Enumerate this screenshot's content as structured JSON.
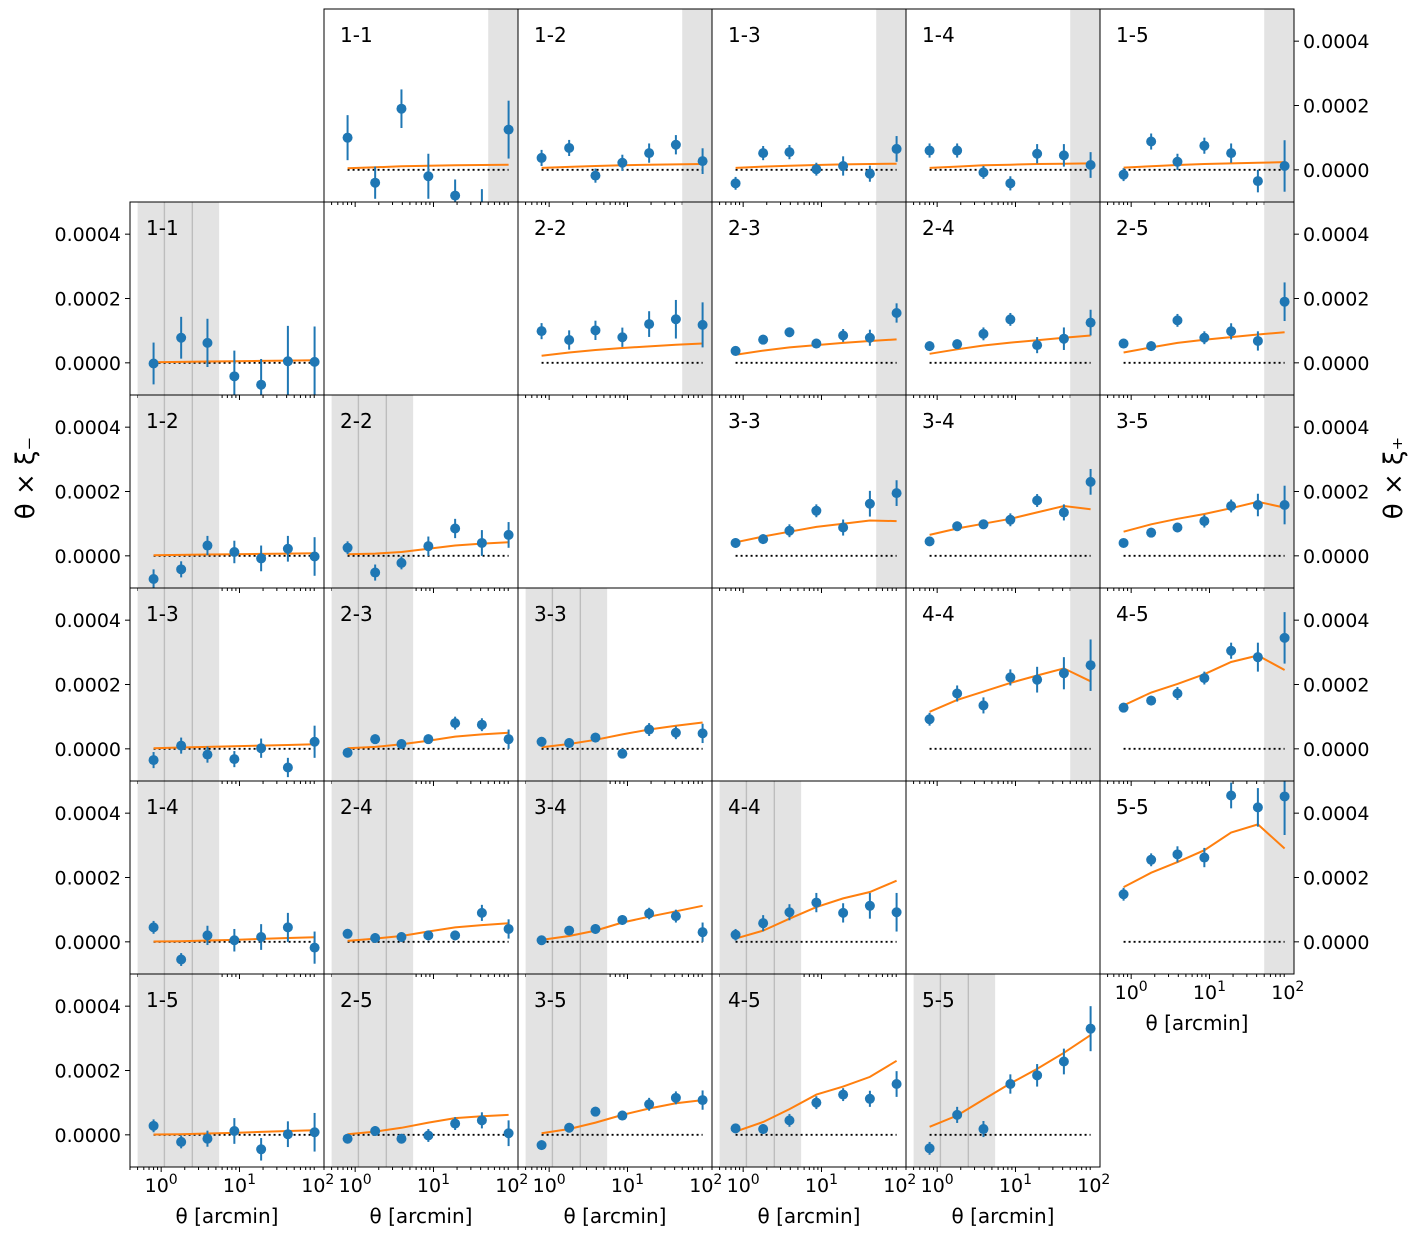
{
  "chart_data": {
    "type": "scatter",
    "description_layout": "grid",
    "x_scale": "log",
    "xlim": [
      0.4,
      120
    ],
    "ylim": [
      -0.0001,
      0.0005
    ],
    "y_ticks": [
      0,
      0.0002,
      0.0004
    ],
    "y_tick_labels": [
      "0.0000",
      "0.0002",
      "0.0004"
    ],
    "x_ticks": [
      1,
      10,
      100
    ],
    "x_tick_labels": {
      "base": "10",
      "exponents": [
        "0",
        "1",
        "2"
      ]
    },
    "x_axis_label": "θ [arcmin]",
    "left_axis_label": "θ × ξ₋",
    "right_axis_label": "θ × ξ₊",
    "theta_bins": [
      0.8,
      1.8,
      3.9,
      8.6,
      18.9,
      41.5,
      91.0
    ],
    "colors": {
      "data": "#1f77b4",
      "model": "#ff7f0e",
      "zero": "#000000",
      "mask": "#e3e3e3"
    },
    "upper_shading": [
      50,
      120
    ],
    "lower_shading": [
      0.5,
      5.5
    ],
    "lower_vlines": [
      1.1,
      2.5
    ],
    "xi_plus": [
      {
        "label": "1-1",
        "row": 0,
        "col": 1,
        "y": [
          0.0001,
          -4e-05,
          0.00019,
          -2e-05,
          -8e-05,
          -0.00012,
          0.000125
        ],
        "err": [
          7e-05,
          5e-05,
          6e-05,
          7e-05,
          5e-05,
          6e-05,
          9e-05
        ],
        "model": [
          5e-06,
          8e-06,
          1.1e-05,
          1.3e-05,
          1.4e-05,
          1.5e-05,
          1.6e-05
        ]
      },
      {
        "label": "1-2",
        "row": 0,
        "col": 2,
        "y": [
          3.7e-05,
          6.8e-05,
          -1.8e-05,
          2.2e-05,
          5.2e-05,
          7.8e-05,
          2.7e-05
        ],
        "err": [
          2.5e-05,
          2.5e-05,
          2.2e-05,
          2.5e-05,
          3e-05,
          3e-05,
          4e-05
        ],
        "model": [
          6e-06,
          9e-06,
          1.2e-05,
          1.4e-05,
          1.6e-05,
          1.7e-05,
          1.8e-05
        ]
      },
      {
        "label": "1-3",
        "row": 0,
        "col": 3,
        "y": [
          -4.2e-05,
          5.2e-05,
          5.5e-05,
          2e-06,
          1.2e-05,
          -1.2e-05,
          6.5e-05
        ],
        "err": [
          2e-05,
          2.2e-05,
          2.2e-05,
          2e-05,
          3e-05,
          2.5e-05,
          4e-05
        ],
        "model": [
          6e-06,
          1e-05,
          1.3e-05,
          1.5e-05,
          1.7e-05,
          1.8e-05,
          1.9e-05
        ]
      },
      {
        "label": "1-4",
        "row": 0,
        "col": 4,
        "y": [
          6e-05,
          6e-05,
          -8e-06,
          -4.2e-05,
          5e-05,
          4.5e-05,
          1.5e-05
        ],
        "err": [
          2.2e-05,
          2.2e-05,
          2e-05,
          2.2e-05,
          3e-05,
          3.5e-05,
          4e-05
        ],
        "model": [
          6e-06,
          1e-05,
          1.4e-05,
          1.6e-05,
          1.8e-05,
          1.9e-05,
          2e-05
        ]
      },
      {
        "label": "1-5",
        "row": 0,
        "col": 5,
        "y": [
          -1.5e-05,
          8.8e-05,
          2.5e-05,
          7.5e-05,
          5.2e-05,
          -3.5e-05,
          1.2e-05
        ],
        "err": [
          2e-05,
          2.5e-05,
          2.5e-05,
          2.5e-05,
          3e-05,
          3.5e-05,
          8e-05
        ],
        "model": [
          7e-06,
          1.1e-05,
          1.5e-05,
          1.8e-05,
          2e-05,
          2.2e-05,
          2.4e-05
        ]
      },
      {
        "label": "2-2",
        "row": 1,
        "col": 2,
        "y": [
          9.85e-05,
          7.1e-05,
          0.000101,
          7.95e-05,
          0.0001205,
          0.0001355,
          0.000118
        ],
        "err": [
          2.5e-05,
          3e-05,
          3e-05,
          3e-05,
          4e-05,
          6e-05,
          7e-05
        ],
        "model": [
          2.2e-05,
          3.2e-05,
          4e-05,
          4.6e-05,
          5.1e-05,
          5.6e-05,
          6e-05
        ]
      },
      {
        "label": "2-3",
        "row": 1,
        "col": 3,
        "y": [
          3.7e-05,
          7.2e-05,
          9.5e-05,
          6e-05,
          8.5e-05,
          7.8e-05,
          0.000155
        ],
        "err": [
          1.5e-05,
          1.5e-05,
          1.5e-05,
          1.5e-05,
          2e-05,
          2.5e-05,
          3e-05
        ],
        "model": [
          2.5e-05,
          3.8e-05,
          4.8e-05,
          5.5e-05,
          6.2e-05,
          6.8e-05,
          7.3e-05
        ]
      },
      {
        "label": "2-4",
        "row": 1,
        "col": 4,
        "y": [
          5.2e-05,
          5.8e-05,
          9e-05,
          0.000135,
          5.5e-05,
          7.5e-05,
          0.000125
        ],
        "err": [
          1.5e-05,
          1.5e-05,
          2e-05,
          2e-05,
          2.5e-05,
          3.5e-05,
          4e-05
        ],
        "model": [
          2.8e-05,
          4.2e-05,
          5.4e-05,
          6.3e-05,
          7e-05,
          7.8e-05,
          8.5e-05
        ]
      },
      {
        "label": "2-5",
        "row": 1,
        "col": 5,
        "y": [
          6e-05,
          5.2e-05,
          0.000132,
          7.8e-05,
          9.8e-05,
          6.8e-05,
          0.00019
        ],
        "err": [
          1.5e-05,
          1.5e-05,
          2e-05,
          2e-05,
          2.5e-05,
          3e-05,
          6e-05
        ],
        "model": [
          3.2e-05,
          4.8e-05,
          6.2e-05,
          7.2e-05,
          8e-05,
          8.8e-05,
          9.5e-05
        ]
      },
      {
        "label": "3-3",
        "row": 2,
        "col": 3,
        "y": [
          4e-05,
          5.2e-05,
          7.8e-05,
          0.00014,
          8.8e-05,
          0.000162,
          0.000195
        ],
        "err": [
          1.5e-05,
          1.5e-05,
          2e-05,
          2e-05,
          2.5e-05,
          4e-05,
          4e-05
        ],
        "model": [
          4.2e-05,
          6e-05,
          7.5e-05,
          9e-05,
          0.0001,
          0.00011,
          0.000108
        ]
      },
      {
        "label": "3-4",
        "row": 2,
        "col": 4,
        "y": [
          4.5e-05,
          9.2e-05,
          9.8e-05,
          0.000112,
          0.000172,
          0.000135,
          0.00023
        ],
        "err": [
          1.2e-05,
          1.5e-05,
          1.5e-05,
          2e-05,
          2e-05,
          2.5e-05,
          4e-05
        ],
        "model": [
          6.5e-05,
          8.5e-05,
          0.0001,
          0.000115,
          0.000135,
          0.000155,
          0.000145
        ]
      },
      {
        "label": "3-5",
        "row": 2,
        "col": 5,
        "y": [
          4e-05,
          7.2e-05,
          8.8e-05,
          0.000108,
          0.000155,
          0.000158,
          0.000158
        ],
        "err": [
          1.2e-05,
          1.5e-05,
          1.5e-05,
          2e-05,
          2e-05,
          3.5e-05,
          6e-05
        ],
        "model": [
          7.5e-05,
          9.8e-05,
          0.000115,
          0.00013,
          0.000148,
          0.000168,
          0.00015
        ]
      },
      {
        "label": "4-4",
        "row": 3,
        "col": 4,
        "y": [
          9.2e-05,
          0.000172,
          0.000135,
          0.000222,
          0.000215,
          0.000235,
          0.00026
        ],
        "err": [
          2e-05,
          2.5e-05,
          2.5e-05,
          2.5e-05,
          4e-05,
          5e-05,
          8e-05
        ],
        "model": [
          0.000115,
          0.000152,
          0.000178,
          0.000205,
          0.000228,
          0.00025,
          0.00021
        ]
      },
      {
        "label": "4-5",
        "row": 3,
        "col": 5,
        "y": [
          0.000128,
          0.00015,
          0.000172,
          0.00022,
          0.000305,
          0.000285,
          0.000345
        ],
        "err": [
          1.5e-05,
          1.5e-05,
          2e-05,
          2e-05,
          2.5e-05,
          4.5e-05,
          8e-05
        ],
        "model": [
          0.000135,
          0.000175,
          0.000202,
          0.000232,
          0.00027,
          0.00029,
          0.000245
        ]
      },
      {
        "label": "5-5",
        "row": 4,
        "col": 5,
        "y": [
          0.000148,
          0.000255,
          0.000272,
          0.000262,
          0.000455,
          0.000418,
          0.000452
        ],
        "err": [
          2e-05,
          2e-05,
          2.5e-05,
          3e-05,
          4e-05,
          6e-05,
          0.00012
        ],
        "model": [
          0.00017,
          0.000215,
          0.000248,
          0.000285,
          0.00034,
          0.000365,
          0.00029
        ]
      }
    ],
    "xi_minus": [
      {
        "label": "1-1",
        "row": 1,
        "col": 0,
        "y": [
          -2e-06,
          7.8e-05,
          6.2e-05,
          -4.2e-05,
          -6.8e-05,
          5e-06,
          3e-06
        ],
        "err": [
          6.5e-05,
          6.5e-05,
          7.5e-05,
          8e-05,
          8e-05,
          0.00011,
          0.00011
        ],
        "model": [
          2e-06,
          3e-06,
          4e-06,
          5e-06,
          6e-06,
          7e-06,
          8e-06
        ]
      },
      {
        "label": "1-2",
        "row": 2,
        "col": 0,
        "y": [
          -7.2e-05,
          -4.2e-05,
          3.2e-05,
          1.2e-05,
          -8e-06,
          2.2e-05,
          -2e-06
        ],
        "err": [
          3e-05,
          2.5e-05,
          3e-05,
          3.5e-05,
          4e-05,
          4e-05,
          6e-05
        ],
        "model": [
          2e-06,
          3e-06,
          4e-06,
          5e-06,
          6e-06,
          7e-06,
          8e-06
        ]
      },
      {
        "label": "2-2",
        "row": 2,
        "col": 1,
        "y": [
          2.5e-05,
          -5.2e-05,
          -2.2e-05,
          3e-05,
          8.5e-05,
          4e-05,
          6.5e-05
        ],
        "err": [
          2e-05,
          2.5e-05,
          2e-05,
          3e-05,
          3e-05,
          4e-05,
          4e-05
        ],
        "model": [
          5e-06,
          7e-06,
          1.2e-05,
          2.2e-05,
          3.2e-05,
          3.8e-05,
          4.2e-05
        ]
      },
      {
        "label": "1-3",
        "row": 3,
        "col": 0,
        "y": [
          -3.5e-05,
          1e-05,
          -1.8e-05,
          -3.2e-05,
          2e-06,
          -5.8e-05,
          2.2e-05
        ],
        "err": [
          2.5e-05,
          2.5e-05,
          2.5e-05,
          2.5e-05,
          3e-05,
          3e-05,
          5e-05
        ],
        "model": [
          2e-06,
          4e-06,
          6e-06,
          8e-06,
          1e-05,
          1.2e-05,
          1.4e-05
        ]
      },
      {
        "label": "2-3",
        "row": 3,
        "col": 1,
        "y": [
          -1.2e-05,
          3e-05,
          1.5e-05,
          3e-05,
          8e-05,
          7.5e-05,
          3e-05
        ],
        "err": [
          1.5e-05,
          1.5e-05,
          1.5e-05,
          1.5e-05,
          2e-05,
          2e-05,
          3e-05
        ],
        "model": [
          2e-06,
          6e-06,
          1.4e-05,
          2.5e-05,
          3.8e-05,
          4.5e-05,
          5e-05
        ]
      },
      {
        "label": "3-3",
        "row": 3,
        "col": 2,
        "y": [
          2.2e-05,
          1.8e-05,
          3.5e-05,
          -1.5e-05,
          6e-05,
          5e-05,
          4.8e-05
        ],
        "err": [
          1.5e-05,
          1.5e-05,
          1.5e-05,
          1.5e-05,
          2e-05,
          2e-05,
          3e-05
        ],
        "model": [
          5e-06,
          1.5e-05,
          2.8e-05,
          4.5e-05,
          6e-05,
          7.2e-05,
          8.2e-05
        ]
      },
      {
        "label": "1-4",
        "row": 4,
        "col": 0,
        "y": [
          4.5e-05,
          -5.5e-05,
          2e-05,
          5e-06,
          1.5e-05,
          4.5e-05,
          -1.8e-05
        ],
        "err": [
          2e-05,
          2e-05,
          3e-05,
          3.5e-05,
          4e-05,
          4.5e-05,
          5e-05
        ],
        "model": [
          1e-06,
          2e-06,
          4e-06,
          6e-06,
          9e-06,
          1.2e-05,
          1.4e-05
        ]
      },
      {
        "label": "2-4",
        "row": 4,
        "col": 1,
        "y": [
          2.5e-05,
          1.2e-05,
          1.5e-05,
          2e-05,
          2e-05,
          9e-05,
          4e-05
        ],
        "err": [
          1.5e-05,
          1.5e-05,
          1.5e-05,
          1.5e-05,
          1.5e-05,
          2.5e-05,
          3e-05
        ],
        "model": [
          3e-06,
          1e-05,
          1.8e-05,
          3.2e-05,
          4.5e-05,
          5.2e-05,
          5.8e-05
        ]
      },
      {
        "label": "3-4",
        "row": 4,
        "col": 2,
        "y": [
          5e-06,
          3.5e-05,
          4e-05,
          6.8e-05,
          8.8e-05,
          8e-05,
          3e-05
        ],
        "err": [
          1e-05,
          1.2e-05,
          1.5e-05,
          1.5e-05,
          1.8e-05,
          2e-05,
          3e-05
        ],
        "model": [
          6e-06,
          1.8e-05,
          3.5e-05,
          6e-05,
          7.8e-05,
          9.5e-05,
          0.000112
        ]
      },
      {
        "label": "4-4",
        "row": 4,
        "col": 3,
        "y": [
          2.2e-05,
          5.8e-05,
          9.2e-05,
          0.000122,
          9e-05,
          0.000112,
          9.2e-05
        ],
        "err": [
          1.8e-05,
          2.5e-05,
          2.5e-05,
          3e-05,
          3e-05,
          4e-05,
          6e-05
        ],
        "model": [
          1e-05,
          3.5e-05,
          7.2e-05,
          0.000108,
          0.000135,
          0.000155,
          0.00019
        ]
      },
      {
        "label": "1-5",
        "row": 5,
        "col": 0,
        "y": [
          2.8e-05,
          -2.2e-05,
          -1.2e-05,
          1.2e-05,
          -4.5e-05,
          2e-06,
          8e-06
        ],
        "err": [
          2e-05,
          2e-05,
          2.5e-05,
          4e-05,
          3.5e-05,
          4e-05,
          6e-05
        ],
        "model": [
          1e-06,
          2e-06,
          4e-06,
          6e-06,
          9e-06,
          1.2e-05,
          1.4e-05
        ]
      },
      {
        "label": "2-5",
        "row": 5,
        "col": 1,
        "y": [
          -1.2e-05,
          1.2e-05,
          -1.2e-05,
          -2e-06,
          3.5e-05,
          4.5e-05,
          5e-06
        ],
        "err": [
          1.5e-05,
          1.5e-05,
          1.5e-05,
          2e-05,
          2e-05,
          2.5e-05,
          4e-05
        ],
        "model": [
          2e-06,
          1e-05,
          2.2e-05,
          3.8e-05,
          5.2e-05,
          5.8e-05,
          6.2e-05
        ]
      },
      {
        "label": "3-5",
        "row": 5,
        "col": 2,
        "y": [
          -3.2e-05,
          2.2e-05,
          7.2e-05,
          6e-05,
          9.5e-05,
          0.000115,
          0.000108
        ],
        "err": [
          1.5e-05,
          1.5e-05,
          1.5e-05,
          1.5e-05,
          2e-05,
          2e-05,
          3e-05
        ],
        "model": [
          5e-06,
          1.8e-05,
          3.8e-05,
          6.2e-05,
          8.2e-05,
          9.8e-05,
          0.000108
        ]
      },
      {
        "label": "4-5",
        "row": 5,
        "col": 3,
        "y": [
          2e-05,
          1.8e-05,
          4.5e-05,
          0.0001,
          0.000125,
          0.000112,
          0.000158
        ],
        "err": [
          1.5e-05,
          1.5e-05,
          2e-05,
          2e-05,
          2e-05,
          2.5e-05,
          4e-05
        ],
        "model": [
          1e-05,
          4e-05,
          8e-05,
          0.000125,
          0.00015,
          0.00018,
          0.00023
        ]
      },
      {
        "label": "5-5",
        "row": 5,
        "col": 4,
        "y": [
          -4.2e-05,
          6.2e-05,
          1.8e-05,
          0.000158,
          0.000185,
          0.000228,
          0.00033
        ],
        "err": [
          2e-05,
          2.5e-05,
          2.5e-05,
          3e-05,
          3.5e-05,
          4e-05,
          7e-05
        ],
        "model": [
          2.5e-05,
          6e-05,
          0.00011,
          0.00016,
          0.000205,
          0.000255,
          0.00031
        ]
      }
    ]
  }
}
